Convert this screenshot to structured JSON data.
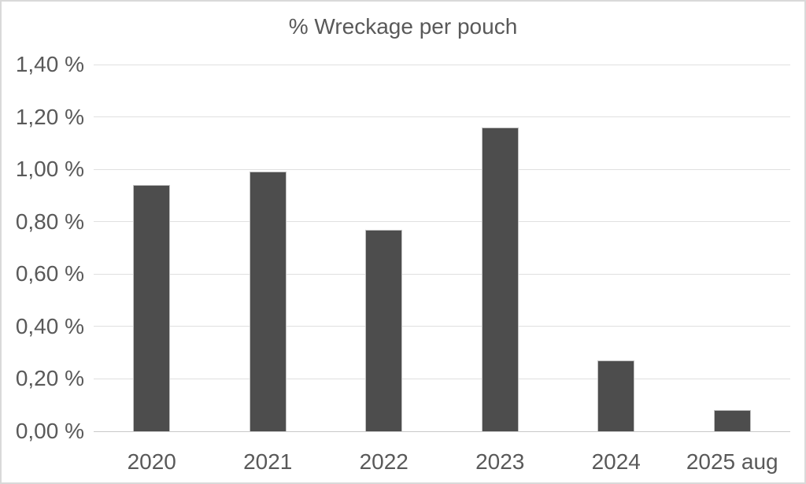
{
  "chart_data": {
    "type": "bar",
    "title": "% Wreckage per pouch",
    "categories": [
      "2020",
      "2021",
      "2022",
      "2023",
      "2024",
      "2025 aug"
    ],
    "values": [
      0.94,
      0.99,
      0.77,
      1.16,
      0.27,
      0.08
    ],
    "y_tick_labels": [
      "0,00 %",
      "0,20 %",
      "0,40 %",
      "0,60 %",
      "0,80 %",
      "1,00 %",
      "1,20 %",
      "1,40 %"
    ],
    "ylim": [
      0,
      1.4
    ],
    "y_step": 0.2,
    "xlabel": "",
    "ylabel": "",
    "grid": "horizontal",
    "legend": "none",
    "colors": {
      "bar_fill": "#4d4d4d",
      "bar_border": "#c2c2c2",
      "gridline": "#e0e0e0",
      "axis_line": "#c9c9c9",
      "text": "#595959",
      "frame_border": "#d9d9d9",
      "background": "#ffffff"
    }
  }
}
